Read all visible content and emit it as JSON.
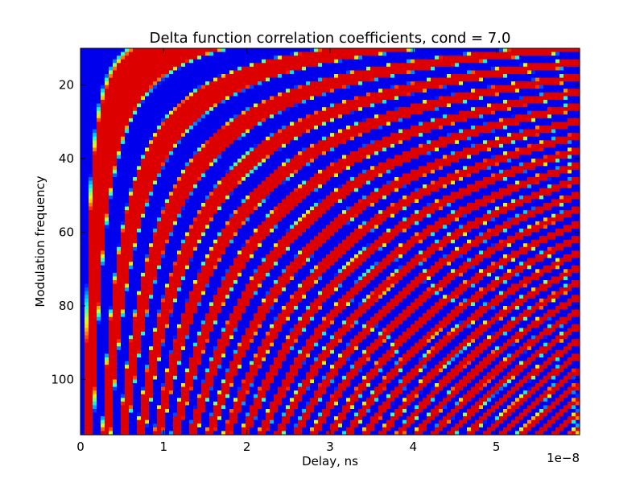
{
  "chart_data": {
    "type": "heatmap",
    "title": "Delta function correlation coefficients, cond = 7.0",
    "xlabel": "Delay, ns",
    "ylabel": "Modulation frequency",
    "x_offset_label": "1e−8",
    "xlim": [
      0,
      6e-08
    ],
    "ylim": [
      115,
      10
    ],
    "x_ticks": [
      0,
      1e-08,
      2e-08,
      3e-08,
      4e-08,
      5e-08
    ],
    "x_tick_labels": [
      "0",
      "1",
      "2",
      "3",
      "4",
      "5"
    ],
    "y_ticks": [
      20,
      40,
      60,
      80,
      100
    ],
    "y_tick_labels": [
      "20",
      "40",
      "60",
      "80",
      "100"
    ],
    "value_range": [
      -1,
      1
    ],
    "colormap": "jet",
    "colormap_stops": [
      "#00007f",
      "#0000c8",
      "#0000ff",
      "#0050ff",
      "#00a0ff",
      "#00e4f8",
      "#29ffce",
      "#7dff7a",
      "#ceff29",
      "#ffe500",
      "#ff9800",
      "#ff4800",
      "#e50000",
      "#c80000",
      "#7f0000"
    ],
    "pattern": "sign of cos(2*pi*f*t) with smooth transitions near zero crossings; frequency increases down the y-axis, delay increases along the x-axis",
    "background": "#ffffff",
    "frame_color": "#000000"
  }
}
